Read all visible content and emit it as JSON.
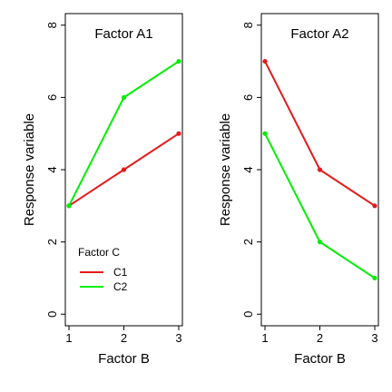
{
  "chart_data": [
    {
      "type": "line",
      "title": "Factor A1",
      "xlabel": "Factor B",
      "ylabel": "Response variable",
      "x": [
        1,
        2,
        3
      ],
      "xlim": [
        1,
        3
      ],
      "ylim": [
        0,
        8
      ],
      "xticks": [
        1,
        2,
        3
      ],
      "yticks": [
        0,
        2,
        4,
        6,
        8
      ],
      "grid": false,
      "legend": {
        "title": "Factor C",
        "placement": "bottom-left"
      },
      "series": [
        {
          "name": "C1",
          "color": "#e41a1c",
          "values": [
            3,
            4,
            5
          ]
        },
        {
          "name": "C2",
          "color": "#00ee00",
          "values": [
            3,
            6,
            7
          ]
        }
      ]
    },
    {
      "type": "line",
      "title": "Factor A2",
      "xlabel": "Factor B",
      "ylabel": "Response variable",
      "x": [
        1,
        2,
        3
      ],
      "xlim": [
        1,
        3
      ],
      "ylim": [
        0,
        8
      ],
      "xticks": [
        1,
        2,
        3
      ],
      "yticks": [
        0,
        2,
        4,
        6,
        8
      ],
      "grid": false,
      "series": [
        {
          "name": "C1",
          "color": "#e41a1c",
          "values": [
            7,
            4,
            3
          ]
        },
        {
          "name": "C2",
          "color": "#00ee00",
          "values": [
            5,
            2,
            1
          ]
        }
      ]
    }
  ]
}
